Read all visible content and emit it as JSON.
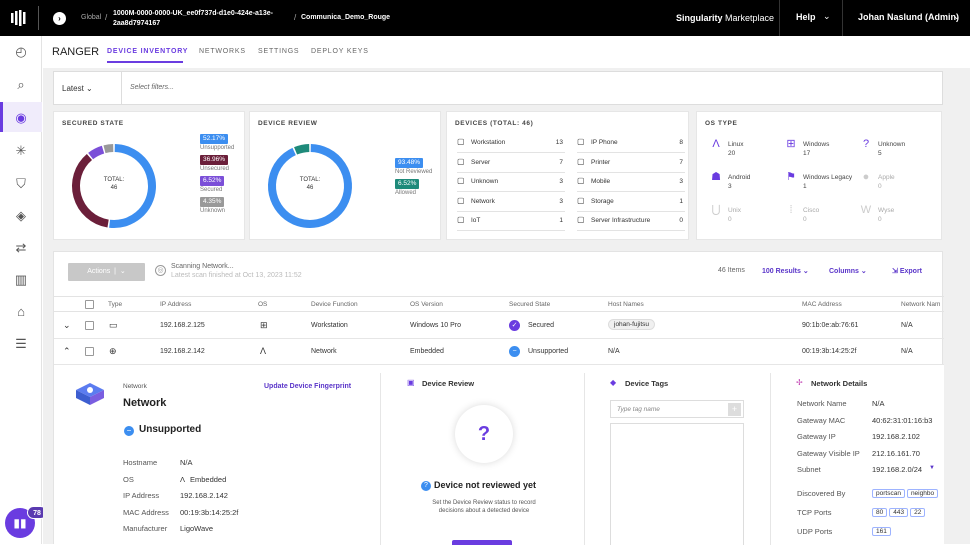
{
  "topbar": {
    "global": "Global",
    "account": "1000M-0000-0000-UK_ee0f737d-d1e0-424e-a13e-2aa8d7974167",
    "site": "Communica_Demo_Rouge",
    "marketplace_prefix": "Singularity",
    "marketplace_suffix": "Marketplace",
    "help": "Help",
    "user": "Johan Naslund (Admin)"
  },
  "sidebar": {
    "icons": [
      "dashboard-icon",
      "search-icon",
      "ranger-icon",
      "sentinels-icon",
      "shield-icon",
      "diamond-icon",
      "sync-icon",
      "reports-icon",
      "server-icon",
      "settings-icon"
    ],
    "notification_count": "78"
  },
  "header": {
    "title": "RANGER",
    "tabs": [
      "DEVICE INVENTORY",
      "NETWORKS",
      "SETTINGS",
      "DEPLOY KEYS"
    ],
    "active_tab": 0
  },
  "filter": {
    "latest": "Latest",
    "placeholder": "Select filters..."
  },
  "secured_state": {
    "title": "SECURED STATE",
    "total_label": "TOTAL:",
    "total": "46",
    "legend": [
      {
        "pct": "52.17%",
        "label": "Unsupported",
        "color": "#3c8ef0",
        "value": 52.17
      },
      {
        "pct": "36.96%",
        "label": "Unsecured",
        "color": "#6b1f3a",
        "value": 36.96
      },
      {
        "pct": "6.52%",
        "label": "Secured",
        "color": "#7b4fd8",
        "value": 6.52
      },
      {
        "pct": "4.35%",
        "label": "Unknown",
        "color": "#999999",
        "value": 4.35
      }
    ]
  },
  "device_review": {
    "title": "DEVICE REVIEW",
    "total_label": "TOTAL:",
    "total": "46",
    "legend": [
      {
        "pct": "93.48%",
        "label": "Not Reviewed",
        "color": "#3c8ef0",
        "value": 93.48
      },
      {
        "pct": "6.52%",
        "label": "Allowed",
        "color": "#1e8a7a",
        "value": 6.52
      }
    ]
  },
  "devices": {
    "title": "DEVICES (TOTAL: 46)",
    "left": [
      {
        "icon": "workstation-icon",
        "label": "Workstation",
        "n": "13"
      },
      {
        "icon": "server-icon",
        "label": "Server",
        "n": "7"
      },
      {
        "icon": "unknown-icon",
        "label": "Unknown",
        "n": "3"
      },
      {
        "icon": "network-icon",
        "label": "Network",
        "n": "3"
      },
      {
        "icon": "iot-icon",
        "label": "IoT",
        "n": "1"
      }
    ],
    "right": [
      {
        "icon": "phone-icon",
        "label": "IP Phone",
        "n": "8"
      },
      {
        "icon": "printer-icon",
        "label": "Printer",
        "n": "7"
      },
      {
        "icon": "mobile-icon",
        "label": "Mobile",
        "n": "3"
      },
      {
        "icon": "storage-icon",
        "label": "Storage",
        "n": "1"
      },
      {
        "icon": "infra-icon",
        "label": "Server Infrastructure",
        "n": "0"
      }
    ]
  },
  "os_type": {
    "title": "OS TYPE",
    "items": [
      {
        "name": "Linux",
        "n": "20",
        "sym": "Λ",
        "dim": false
      },
      {
        "name": "Windows",
        "n": "17",
        "sym": "⊞",
        "dim": false
      },
      {
        "name": "Unknown",
        "n": "5",
        "sym": "?",
        "dim": false
      },
      {
        "name": "Android",
        "n": "3",
        "sym": "☗",
        "dim": false
      },
      {
        "name": "Windows Legacy",
        "n": "1",
        "sym": "⚑",
        "dim": false
      },
      {
        "name": "Apple",
        "n": "0",
        "sym": "●",
        "dim": true
      },
      {
        "name": "Unix",
        "n": "0",
        "sym": "⋃",
        "dim": true
      },
      {
        "name": "Cisco",
        "n": "0",
        "sym": "⁞",
        "dim": true
      },
      {
        "name": "Wyse",
        "n": "0",
        "sym": "W",
        "dim": true
      }
    ]
  },
  "toolbar": {
    "actions": "Actions",
    "scan_title": "Scanning Network...",
    "scan_sub": "Latest scan finished at Oct 13, 2023 11:52",
    "items": "46 Items",
    "results": "100 Results",
    "columns": "Columns",
    "export": "Export"
  },
  "table": {
    "headers": [
      "Type",
      "IP Address",
      "OS",
      "Device Function",
      "OS Version",
      "Secured State",
      "Host Names",
      "MAC Address",
      "Network Nam"
    ],
    "rows": [
      {
        "ip": "192.168.2.125",
        "function": "Workstation",
        "osver": "Windows 10 Pro",
        "state": "Secured",
        "host": "johan-fujitsu",
        "mac": "90:1b:0e:ab:76:61",
        "net": "N/A"
      },
      {
        "ip": "192.168.2.142",
        "function": "Network",
        "osver": "Embedded",
        "state": "Unsupported",
        "host": "N/A",
        "mac": "00:19:3b:14:25:2f",
        "net": "N/A"
      }
    ]
  },
  "detail": {
    "kind_label": "Network",
    "kind": "Network",
    "update_link": "Update Device Fingerprint",
    "state": "Unsupported",
    "fields": [
      {
        "k": "Hostname",
        "v": "N/A"
      },
      {
        "k": "OS",
        "v": "Embedded"
      },
      {
        "k": "IP Address",
        "v": "192.168.2.142"
      },
      {
        "k": "MAC Address",
        "v": "00:19:3b:14:25:2f"
      },
      {
        "k": "Manufacturer",
        "v": "LigoWave"
      }
    ],
    "review_title": "Device Review",
    "review_status": "Device not reviewed yet",
    "review_desc1": "Set the Device Review status to record",
    "review_desc2": "decisions about a detected device",
    "tags_title": "Device Tags",
    "tag_placeholder": "Type tag name",
    "net_title": "Network Details",
    "net": [
      {
        "k": "Network Name",
        "v": "N/A"
      },
      {
        "k": "Gateway MAC",
        "v": "40:62:31:01:16:b3"
      },
      {
        "k": "Gateway IP",
        "v": "192.168.2.102"
      },
      {
        "k": "Gateway Visible IP",
        "v": "212.16.161.70"
      },
      {
        "k": "Subnet",
        "v": "192.168.2.0/24"
      }
    ],
    "discovered_label": "Discovered By",
    "discovered": [
      "portscan",
      "neighbo"
    ],
    "tcp_label": "TCP Ports",
    "tcp": [
      "80",
      "443",
      "22"
    ],
    "udp_label": "UDP Ports",
    "udp": [
      "161"
    ]
  }
}
